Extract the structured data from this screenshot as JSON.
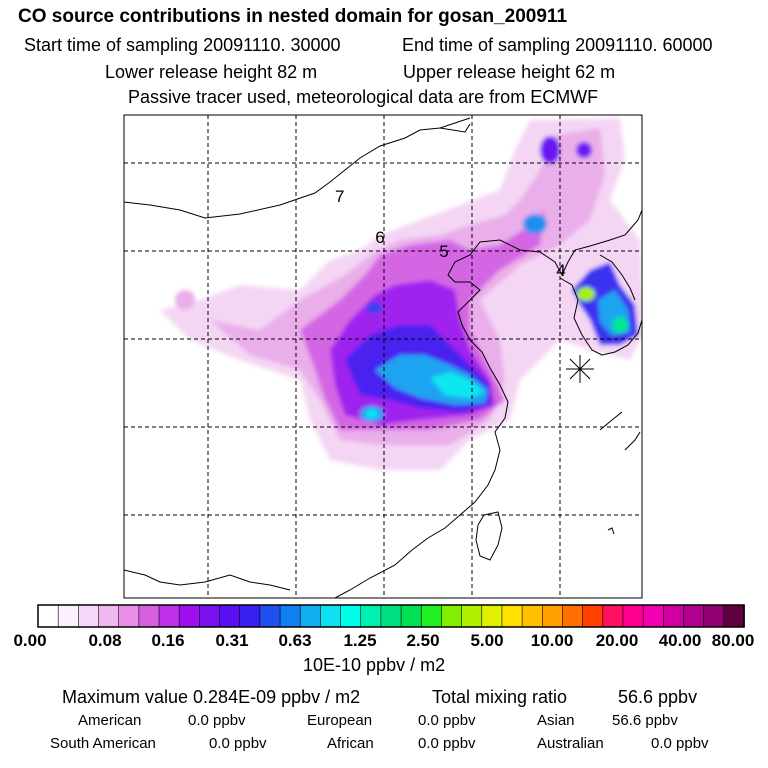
{
  "header": {
    "title": "CO  source contributions in nested domain for gosan_200911",
    "start_time": "Start time of sampling 20091110. 30000",
    "end_time": "End time of sampling 20091110. 60000",
    "lower_height": "Lower release height   82 m",
    "upper_height": "Upper release height   62 m",
    "tracer_note": "Passive tracer used, meteorological data are from ECMWF"
  },
  "map": {
    "trajectory_labels": [
      "7",
      "6",
      "5",
      "4"
    ],
    "receptor_symbol": "receptor-star"
  },
  "colorbar": {
    "colors": [
      "#ffffff",
      "#fdf0fd",
      "#f8d8f8",
      "#f0b8f0",
      "#e890e8",
      "#d860e0",
      "#c030e8",
      "#9f10f0",
      "#7a10f0",
      "#5a10f0",
      "#3a20f0",
      "#2050f0",
      "#1080f0",
      "#10b0f0",
      "#10e0f0",
      "#00ffe8",
      "#00f0b0",
      "#00e080",
      "#00e050",
      "#20f020",
      "#80f000",
      "#b0f000",
      "#e0f000",
      "#ffe000",
      "#ffc000",
      "#ffa000",
      "#ff7000",
      "#ff4000",
      "#ff1060",
      "#ff0090",
      "#f000b0",
      "#d000a0",
      "#b00090",
      "#900070",
      "#600040"
    ],
    "tick_labels": [
      "0.00",
      "0.08",
      "0.16",
      "0.31",
      "0.63",
      "1.25",
      "2.50",
      "5.00",
      "10.00",
      "20.00",
      "40.00",
      "80.00"
    ],
    "unit": "10E-10 ppbv / m2"
  },
  "stats": {
    "max_value": "Maximum value  0.284E-09 ppbv / m2",
    "total_mixing": "Total mixing ratio",
    "total_mixing_value": "56.6 ppbv",
    "regions": [
      {
        "name": "American",
        "value": "0.0 ppbv"
      },
      {
        "name": "European",
        "value": "0.0 ppbv"
      },
      {
        "name": "Asian",
        "value": "56.6 ppbv"
      },
      {
        "name": "South American",
        "value": "0.0 ppbv"
      },
      {
        "name": "African",
        "value": "0.0 ppbv"
      },
      {
        "name": "Australian",
        "value": "0.0 ppbv"
      }
    ]
  }
}
